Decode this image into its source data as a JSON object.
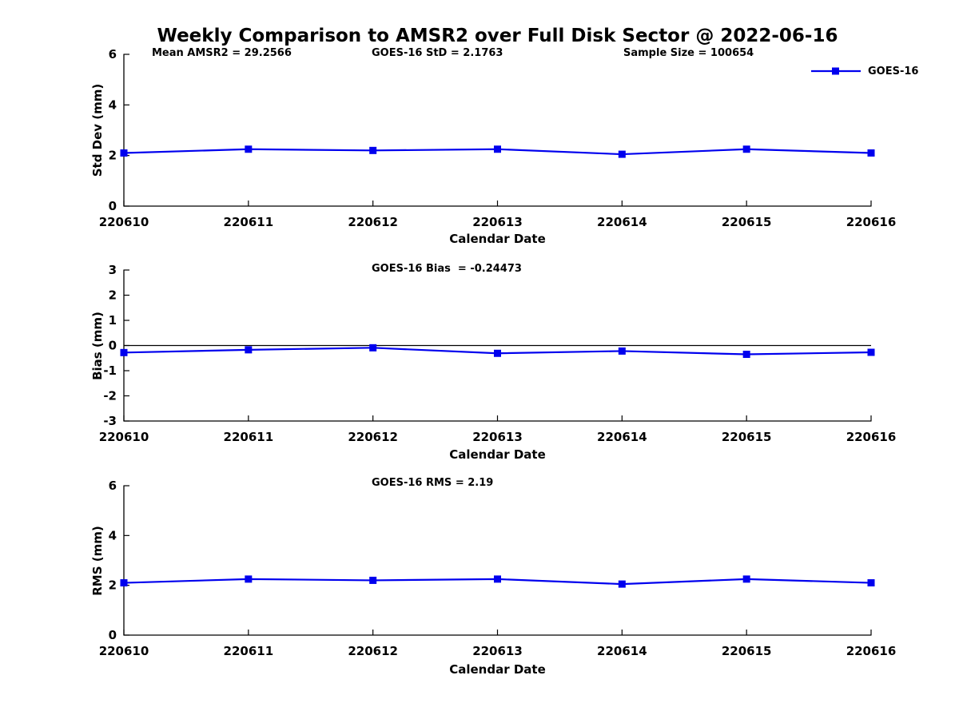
{
  "title": "Weekly Comparison to AMSR2 over Full Disk Sector @ 2022-06-16",
  "legend": {
    "label": "GOES-16",
    "color": "#0000EE"
  },
  "colors": {
    "axis": "#000000",
    "text": "#000000",
    "background": "#FFFFFF"
  },
  "chart_data": [
    {
      "type": "line",
      "title": "",
      "annotations": [
        "Mean AMSR2 = 29.2566",
        "GOES-16 StD = 2.1763",
        "Sample Size = 100654"
      ],
      "categories": [
        "220610",
        "220611",
        "220612",
        "220613",
        "220614",
        "220615",
        "220616"
      ],
      "series": [
        {
          "name": "GOES-16",
          "values": [
            2.1,
            2.25,
            2.2,
            2.25,
            2.05,
            2.25,
            2.1
          ]
        }
      ],
      "xlabel": "Calendar Date",
      "ylabel": "Std Dev (mm)",
      "ylim": [
        0,
        6
      ],
      "yticks": [
        0,
        2,
        4,
        6
      ],
      "zero_line": false,
      "grid": false,
      "legend_position": "top-right-outside",
      "marker": "square"
    },
    {
      "type": "line",
      "title": "GOES-16 Bias  = -0.24473",
      "annotations": [],
      "categories": [
        "220610",
        "220611",
        "220612",
        "220613",
        "220614",
        "220615",
        "220616"
      ],
      "series": [
        {
          "name": "GOES-16",
          "values": [
            -0.28,
            -0.17,
            -0.09,
            -0.31,
            -0.22,
            -0.35,
            -0.27
          ]
        }
      ],
      "xlabel": "Calendar Date",
      "ylabel": "Bias (mm)",
      "ylim": [
        -3,
        3
      ],
      "yticks": [
        3,
        2,
        1,
        0,
        -1,
        -2,
        -3
      ],
      "zero_line": true,
      "grid": false,
      "legend_position": "none",
      "marker": "square"
    },
    {
      "type": "line",
      "title": "GOES-16 RMS = 2.19",
      "annotations": [],
      "categories": [
        "220610",
        "220611",
        "220612",
        "220613",
        "220614",
        "220615",
        "220616"
      ],
      "series": [
        {
          "name": "GOES-16",
          "values": [
            2.1,
            2.25,
            2.2,
            2.25,
            2.05,
            2.25,
            2.1
          ]
        }
      ],
      "xlabel": "Calendar Date",
      "ylabel": "RMS (mm)",
      "ylim": [
        0,
        6
      ],
      "yticks": [
        0,
        2,
        4,
        6
      ],
      "zero_line": false,
      "grid": false,
      "legend_position": "none",
      "marker": "square"
    }
  ]
}
